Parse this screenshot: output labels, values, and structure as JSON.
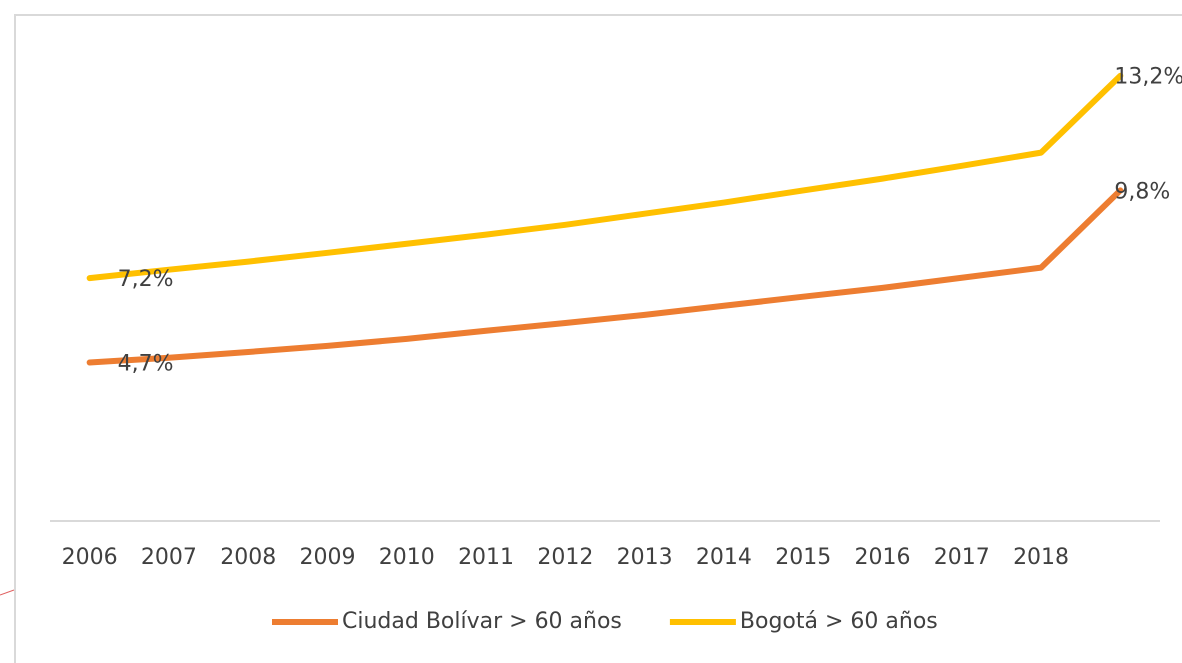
{
  "chart_data": {
    "type": "line",
    "categories": [
      "2006",
      "2007",
      "2008",
      "2009",
      "2010",
      "2011",
      "2012",
      "2013",
      "2014",
      "2015",
      "2016",
      "2017",
      "2018",
      null
    ],
    "series": [
      {
        "name": "Ciudad Bolívar > 60 años",
        "color": "#ed7d31",
        "values": [
          4.7,
          4.84,
          5.01,
          5.19,
          5.4,
          5.64,
          5.87,
          6.11,
          6.38,
          6.65,
          6.91,
          7.21,
          7.51,
          9.8
        ],
        "value_labels": [
          "4,7%",
          null,
          null,
          null,
          null,
          null,
          null,
          null,
          null,
          null,
          null,
          null,
          null,
          "9,8%"
        ]
      },
      {
        "name": "Bogotá > 60 años",
        "color": "#ffc000",
        "values": [
          7.2,
          7.45,
          7.69,
          7.95,
          8.22,
          8.49,
          8.78,
          9.11,
          9.44,
          9.8,
          10.15,
          10.53,
          10.92,
          13.2
        ],
        "value_labels": [
          "7,2%",
          null,
          null,
          null,
          null,
          null,
          null,
          null,
          null,
          null,
          null,
          null,
          null,
          "13,2%"
        ]
      }
    ],
    "ylim": [
      0,
      15
    ],
    "legend": "bottom"
  }
}
